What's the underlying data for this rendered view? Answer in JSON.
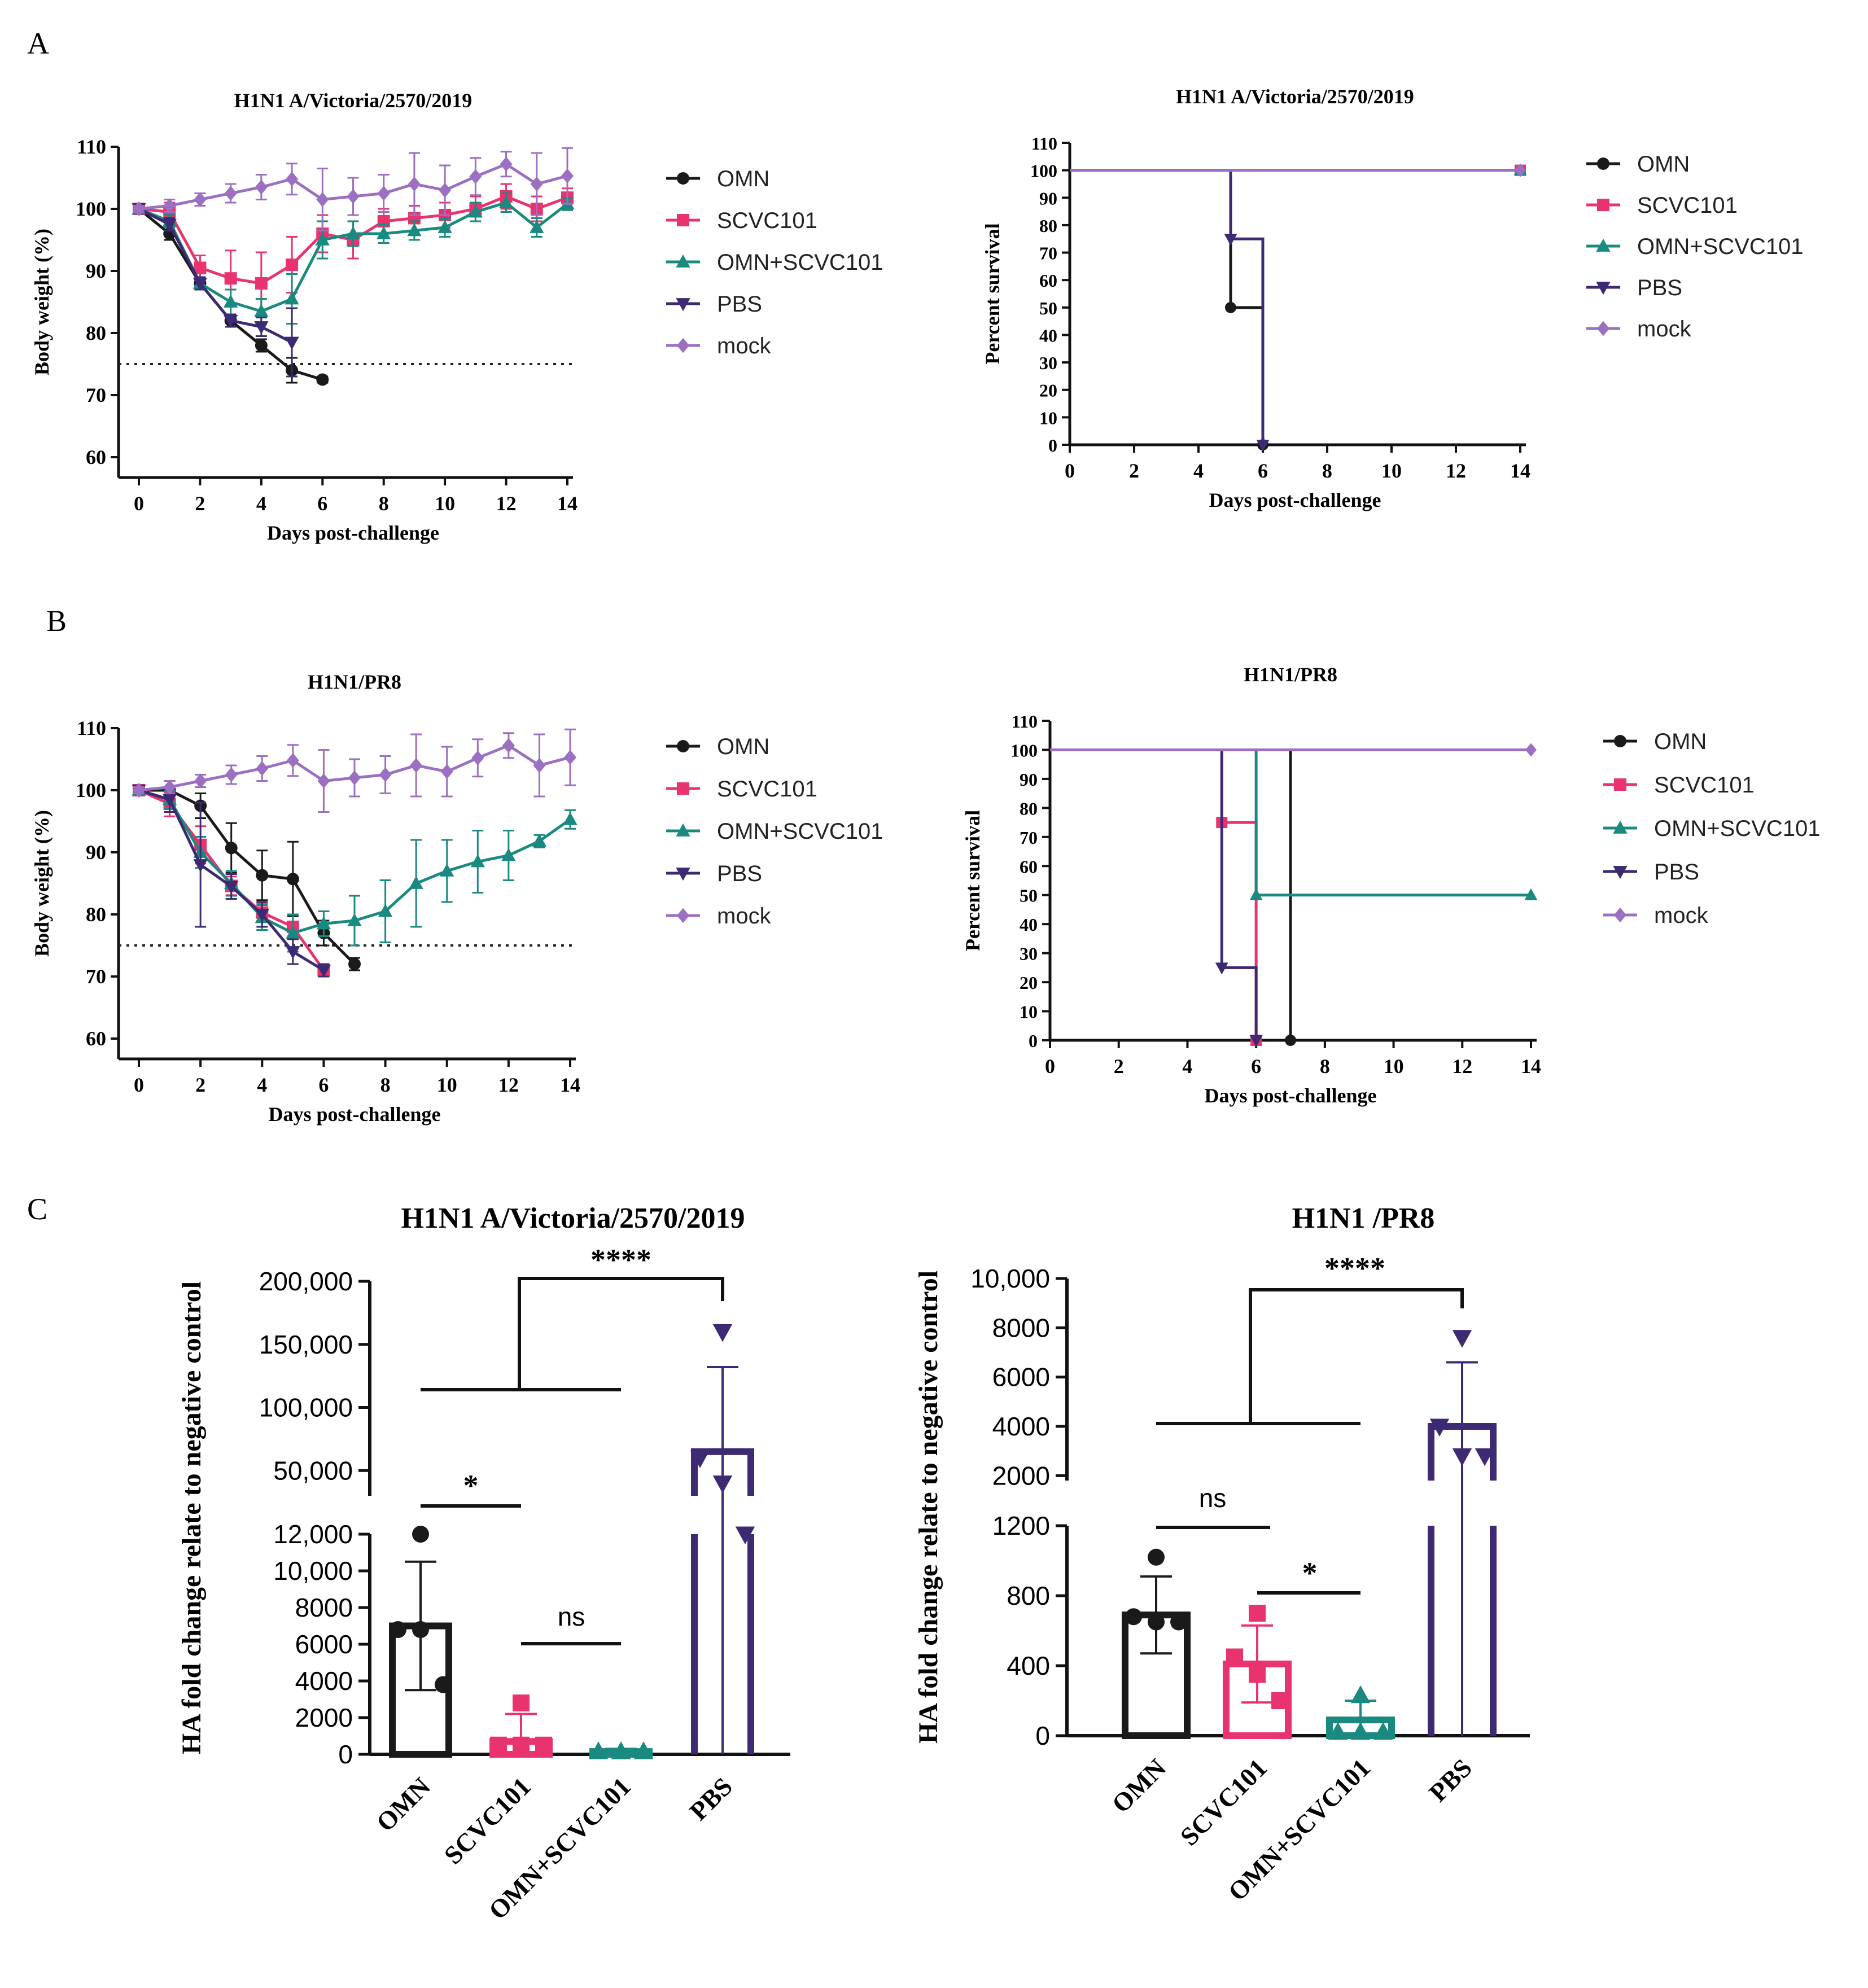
{
  "panels": {
    "A": "A",
    "B": "B",
    "C": "C"
  },
  "colors": {
    "OMN": "#1a1a1a",
    "SCVC101": "#e8336f",
    "OMN+SCVC101": "#1a8a80",
    "PBS": "#3d2a73",
    "mock": "#9b6fc2"
  },
  "legend": [
    "OMN",
    "SCVC101",
    "OMN+SCVC101",
    "PBS",
    "mock"
  ],
  "chart_data": [
    {
      "id": "A1",
      "type": "line",
      "title": "H1N1 A/Victoria/2570/2019",
      "xlabel": "Days post-challenge",
      "ylabel": "Body weight (%)",
      "xlim": [
        0,
        14
      ],
      "ylim": [
        60,
        110
      ],
      "xticks": [
        "0",
        "2",
        "4",
        "6",
        "8",
        "10",
        "12",
        "14"
      ],
      "yticks": [
        "60",
        "70",
        "80",
        "90",
        "100",
        "110"
      ],
      "threshold": 75,
      "series": [
        {
          "name": "OMN",
          "x": [
            0,
            1,
            2,
            3,
            4,
            5,
            6
          ],
          "y": [
            100,
            96,
            88,
            82,
            78,
            74,
            72.5
          ],
          "err": [
            0.5,
            1,
            1,
            1,
            1,
            2,
            0.5
          ]
        },
        {
          "name": "SCVC101",
          "x": [
            0,
            1,
            2,
            3,
            4,
            5,
            6,
            7,
            8,
            9,
            10,
            11,
            12,
            13,
            14
          ],
          "y": [
            100,
            99.5,
            90.5,
            88.8,
            88,
            91,
            96,
            95,
            98,
            98.5,
            99,
            100,
            102,
            100,
            101.8
          ],
          "err": [
            0.5,
            1.5,
            2,
            4.5,
            5,
            4.5,
            3,
            3,
            2,
            2,
            2,
            2,
            2,
            2,
            1.5
          ]
        },
        {
          "name": "OMN+SCVC101",
          "x": [
            0,
            1,
            2,
            3,
            4,
            5,
            6,
            7,
            8,
            9,
            10,
            11,
            12,
            13,
            14
          ],
          "y": [
            100,
            98,
            88,
            85,
            83.5,
            85.5,
            95,
            96,
            96,
            96.5,
            97,
            99.5,
            101,
            97,
            100.8
          ],
          "err": [
            0.5,
            1,
            1,
            2,
            2,
            4,
            3,
            2,
            1.5,
            1.5,
            1.5,
            1.5,
            1.5,
            1.5,
            1
          ]
        },
        {
          "name": "PBS",
          "x": [
            0,
            1,
            2,
            3,
            4,
            5
          ],
          "y": [
            100,
            97.5,
            88,
            82,
            81,
            78.5
          ],
          "err": [
            0.5,
            1,
            1,
            1,
            1.5,
            5.5
          ]
        },
        {
          "name": "mock",
          "x": [
            0,
            1,
            2,
            3,
            4,
            5,
            6,
            7,
            8,
            9,
            10,
            11,
            12,
            13,
            14
          ],
          "y": [
            100,
            100.5,
            101.5,
            102.5,
            103.5,
            104.8,
            101.5,
            102,
            102.5,
            104,
            103,
            105.2,
            107.2,
            104,
            105.3
          ],
          "err": [
            0.5,
            1,
            1,
            1.5,
            2,
            2.5,
            5,
            3,
            3,
            5,
            4,
            3,
            2,
            5,
            4.5
          ]
        }
      ]
    },
    {
      "id": "A2",
      "type": "line",
      "title": "H1N1 A/Victoria/2570/2019",
      "xlabel": "Days post-challenge",
      "ylabel": "Percent survival",
      "xlim": [
        0,
        14
      ],
      "ylim": [
        0,
        110
      ],
      "xticks": [
        "0",
        "2",
        "4",
        "6",
        "8",
        "10",
        "12",
        "14"
      ],
      "yticks": [
        "0",
        "10",
        "20",
        "30",
        "40",
        "50",
        "60",
        "70",
        "80",
        "90",
        "100",
        "110"
      ],
      "series": [
        {
          "name": "OMN",
          "x": [
            0,
            5,
            6
          ],
          "y": [
            100,
            50,
            0
          ]
        },
        {
          "name": "SCVC101",
          "x": [
            0,
            14
          ],
          "y": [
            100,
            100
          ]
        },
        {
          "name": "OMN+SCVC101",
          "x": [
            0,
            14
          ],
          "y": [
            100,
            100
          ]
        },
        {
          "name": "PBS",
          "x": [
            0,
            5,
            6
          ],
          "y": [
            100,
            75,
            0
          ]
        },
        {
          "name": "mock",
          "x": [
            0,
            14
          ],
          "y": [
            100,
            100
          ]
        }
      ]
    },
    {
      "id": "B1",
      "type": "line",
      "title": "H1N1/PR8",
      "xlabel": "Days post-challenge",
      "ylabel": "Body weight (%)",
      "xlim": [
        0,
        14
      ],
      "ylim": [
        60,
        110
      ],
      "xticks": [
        "0",
        "2",
        "4",
        "6",
        "8",
        "10",
        "12",
        "14"
      ],
      "yticks": [
        "60",
        "70",
        "80",
        "90",
        "100",
        "110"
      ],
      "threshold": 75,
      "series": [
        {
          "name": "OMN",
          "x": [
            0,
            1,
            2,
            3,
            4,
            5,
            6,
            7
          ],
          "y": [
            100,
            100,
            97.5,
            90.7,
            86.3,
            85.7,
            77,
            72
          ],
          "err": [
            0.5,
            1.5,
            2,
            4,
            4,
            6,
            2,
            1
          ]
        },
        {
          "name": "SCVC101",
          "x": [
            0,
            1,
            2,
            3,
            4,
            5,
            6
          ],
          "y": [
            100,
            97.8,
            91.2,
            84.6,
            80.3,
            78,
            71
          ],
          "err": [
            0.5,
            2,
            3,
            1.5,
            1.5,
            2,
            1
          ]
        },
        {
          "name": "OMN+SCVC101",
          "x": [
            0,
            1,
            2,
            3,
            4,
            5,
            6,
            7,
            8,
            9,
            10,
            11,
            12,
            13,
            14
          ],
          "y": [
            100,
            98.5,
            90,
            85,
            79.5,
            77,
            78.5,
            79,
            80.5,
            85,
            87,
            88.5,
            89.5,
            91.8,
            95.3
          ],
          "err": [
            0.5,
            1.5,
            2.5,
            2,
            2,
            3,
            2,
            4,
            5,
            7,
            5,
            5,
            4,
            1,
            1.5
          ]
        },
        {
          "name": "PBS",
          "x": [
            0,
            1,
            2,
            3,
            4,
            5,
            6
          ],
          "y": [
            100,
            98.5,
            88,
            84.5,
            80,
            74,
            71
          ],
          "err": [
            0.5,
            2,
            10,
            2,
            2,
            2,
            1
          ]
        },
        {
          "name": "mock",
          "x": [
            0,
            1,
            2,
            3,
            4,
            5,
            6,
            7,
            8,
            9,
            10,
            11,
            12,
            13,
            14
          ],
          "y": [
            100,
            100.5,
            101.5,
            102.5,
            103.5,
            104.8,
            101.5,
            102,
            102.5,
            104,
            103,
            105.2,
            107.2,
            104,
            105.3
          ],
          "err": [
            0.5,
            1,
            1,
            1.5,
            2,
            2.5,
            5,
            3,
            3,
            5,
            4,
            3,
            2,
            5,
            4.5
          ]
        }
      ]
    },
    {
      "id": "B2",
      "type": "line",
      "title": "H1N1/PR8",
      "xlabel": "Days post-challenge",
      "ylabel": "Percent survival",
      "xlim": [
        0,
        14
      ],
      "ylim": [
        0,
        110
      ],
      "xticks": [
        "0",
        "2",
        "4",
        "6",
        "8",
        "10",
        "12",
        "14"
      ],
      "yticks": [
        "0",
        "10",
        "20",
        "30",
        "40",
        "50",
        "60",
        "70",
        "80",
        "90",
        "100",
        "110"
      ],
      "series": [
        {
          "name": "OMN",
          "x": [
            0,
            7
          ],
          "y": [
            100,
            0
          ]
        },
        {
          "name": "SCVC101",
          "x": [
            0,
            5,
            6
          ],
          "y": [
            100,
            75,
            0
          ]
        },
        {
          "name": "OMN+SCVC101",
          "x": [
            0,
            6,
            14
          ],
          "y": [
            100,
            50,
            50
          ]
        },
        {
          "name": "PBS",
          "x": [
            0,
            5,
            6
          ],
          "y": [
            100,
            25,
            0
          ]
        },
        {
          "name": "mock",
          "x": [
            0,
            14
          ],
          "y": [
            100,
            100
          ]
        }
      ]
    },
    {
      "id": "C1",
      "type": "bar",
      "title": "H1N1 A/Victoria/2570/2019",
      "ylabel": "HA fold change relate to negative control",
      "categories": [
        "OMN",
        "SCVC101",
        "OMN+SCVC101",
        "PBS"
      ],
      "values": [
        7000,
        700,
        150,
        65000
      ],
      "sd": [
        3500,
        1500,
        150,
        67000
      ],
      "points": [
        [
          12000,
          6800,
          6800,
          3800
        ],
        [
          2800,
          500,
          500,
          500
        ],
        [
          150,
          150,
          150,
          150
        ],
        [
          160000,
          60000,
          40000,
          12000
        ]
      ],
      "ylim_lower": [
        0,
        12000
      ],
      "ylim_upper": [
        30000,
        200000
      ],
      "yticks_lower": [
        "0",
        "2000",
        "4000",
        "6000",
        "8000",
        "10,000",
        "12,000"
      ],
      "yticks_upper": [
        "50,000",
        "100,000",
        "150,000",
        "200,000"
      ],
      "significance": {
        "top": "****",
        "star": "*",
        "ns": "ns"
      }
    },
    {
      "id": "C2",
      "type": "bar",
      "title": "H1N1 /PR8",
      "ylabel": "HA fold change relate to negative control",
      "categories": [
        "OMN",
        "SCVC101",
        "OMN+SCVC101",
        "PBS"
      ],
      "values": [
        690,
        410,
        90,
        4000
      ],
      "sd": [
        220,
        220,
        110,
        2600
      ],
      "points": [
        [
          1020,
          680,
          650,
          650
        ],
        [
          700,
          450,
          350,
          200
        ],
        [
          230,
          20,
          20,
          20
        ],
        [
          7600,
          4000,
          2800,
          2800
        ]
      ],
      "ylim_lower": [
        0,
        1200
      ],
      "ylim_upper": [
        1800,
        10000
      ],
      "yticks_lower": [
        "0",
        "400",
        "800",
        "1200"
      ],
      "yticks_upper": [
        "2000",
        "4000",
        "6000",
        "8000",
        "10,000"
      ],
      "significance": {
        "top": "****",
        "star": "*",
        "ns": "ns"
      }
    }
  ]
}
